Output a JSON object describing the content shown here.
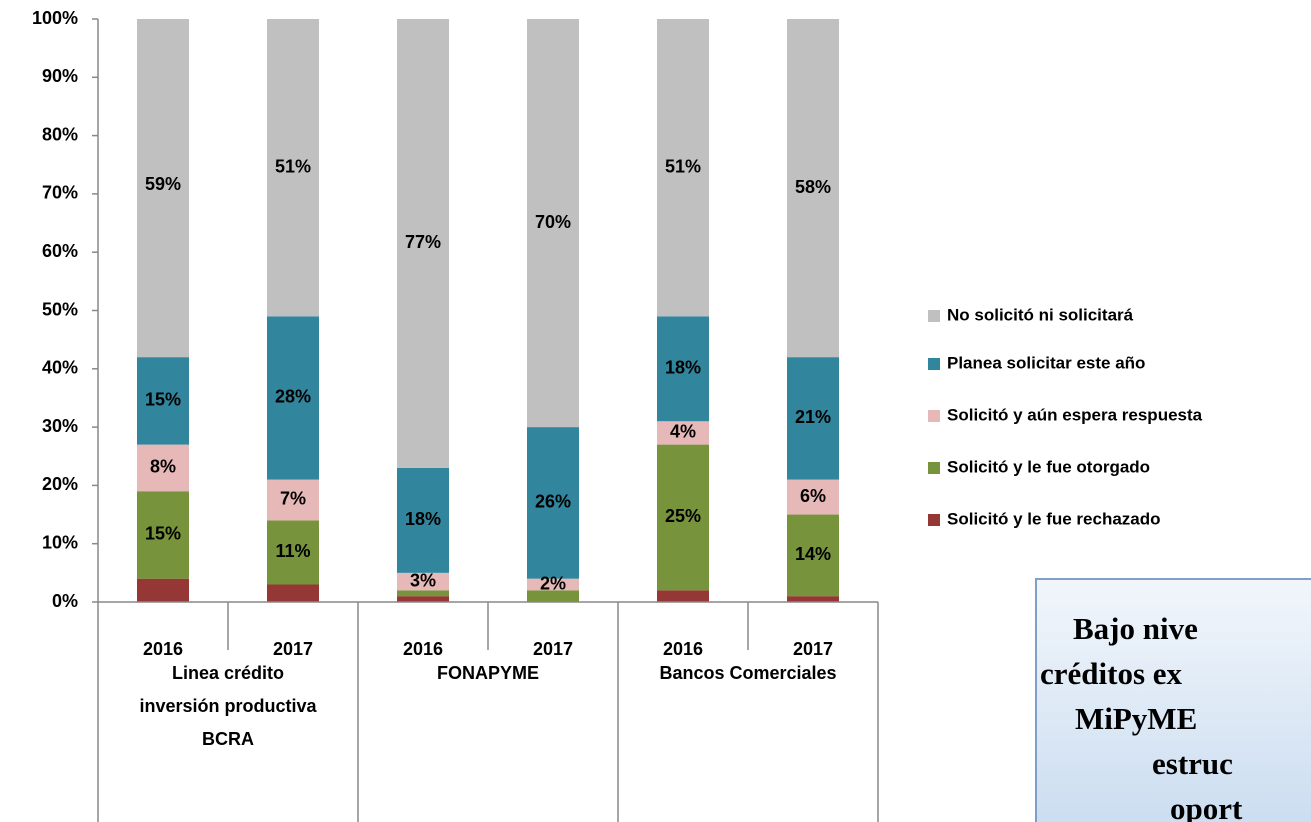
{
  "chart_data": {
    "type": "stacked_bar",
    "categories": [
      "2016",
      "2017",
      "2016",
      "2017",
      "2016",
      "2017"
    ],
    "groups": [
      "Linea crédito inversión productiva BCRA",
      "FONAPYME",
      "Bancos Comerciales"
    ],
    "ylim": [
      0,
      100
    ],
    "yticks": [
      {
        "value": 0,
        "label": "0%"
      },
      {
        "value": 10,
        "label": "10%"
      },
      {
        "value": 20,
        "label": "20%"
      },
      {
        "value": 30,
        "label": "30%"
      },
      {
        "value": 40,
        "label": "40%"
      },
      {
        "value": 50,
        "label": "50%"
      },
      {
        "value": 60,
        "label": "60%"
      },
      {
        "value": 70,
        "label": "70%"
      },
      {
        "value": 80,
        "label": "80%"
      },
      {
        "value": 90,
        "label": "90%"
      },
      {
        "value": 100,
        "label": "100%"
      }
    ],
    "legend": "right",
    "series": [
      {
        "name": "Solicitó y le fue rechazado",
        "color": "#953735",
        "values": [
          4,
          3,
          1,
          0,
          2,
          1
        ]
      },
      {
        "name": "Solicitó y le fue otorgado",
        "color": "#77933c",
        "values": [
          15,
          11,
          1,
          2,
          25,
          14
        ],
        "value_labels": [
          "15%",
          "11%",
          null,
          null,
          "25%",
          "14%"
        ]
      },
      {
        "name": "Solicitó y aún espera respuesta",
        "color": "#e6b9b8",
        "values": [
          8,
          7,
          3,
          2,
          4,
          6
        ],
        "value_labels": [
          "8%",
          "7%",
          "3%",
          "2%",
          "4%",
          "6%"
        ]
      },
      {
        "name": "Planea solicitar este año",
        "color": "#31859c",
        "values": [
          15,
          28,
          18,
          26,
          18,
          21
        ],
        "value_labels": [
          "15%",
          "28%",
          "18%",
          "26%",
          "18%",
          "21%"
        ]
      },
      {
        "name": "No solicitó ni solicitará",
        "color": "#c0c0c0",
        "values": [
          59,
          51,
          77,
          70,
          51,
          58
        ],
        "value_labels": [
          "59%",
          "51%",
          "77%",
          "70%",
          "51%",
          "58%"
        ]
      }
    ]
  },
  "callout": {
    "lines": [
      "Bajo nive",
      "créditos ex",
      "MiPyME",
      "estruc",
      "oport"
    ]
  }
}
